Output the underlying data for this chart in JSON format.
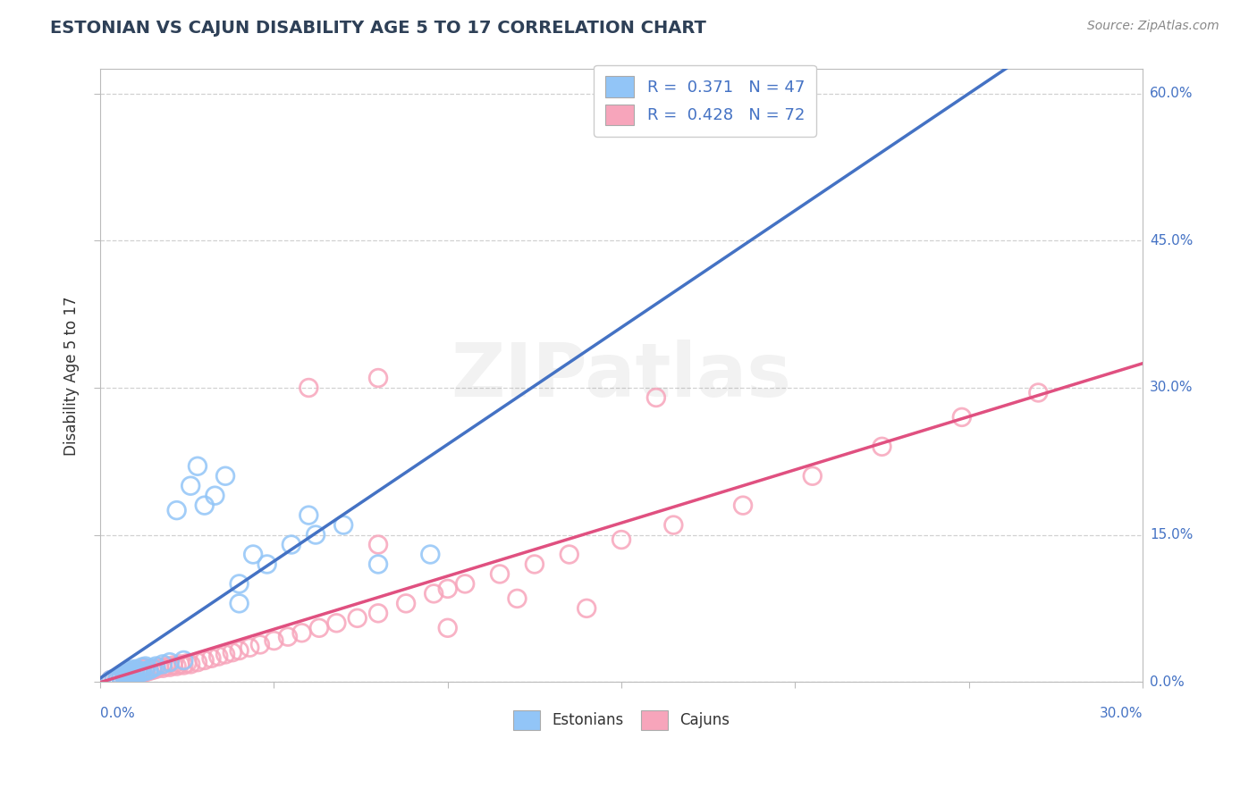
{
  "title": "ESTONIAN VS CAJUN DISABILITY AGE 5 TO 17 CORRELATION CHART",
  "source": "Source: ZipAtlas.com",
  "ylabel_label": "Disability Age 5 to 17",
  "xmin": 0.0,
  "xmax": 0.3,
  "ymin": 0.0,
  "ymax": 0.625,
  "yticks": [
    0.0,
    0.15,
    0.3,
    0.45,
    0.6
  ],
  "ytick_labels": [
    "0.0%",
    "15.0%",
    "30.0%",
    "45.0%",
    "60.0%"
  ],
  "xticks": [
    0.0,
    0.05,
    0.1,
    0.15,
    0.2,
    0.25,
    0.3
  ],
  "estonian_color": "#92C5F7",
  "cajun_color": "#F7A5BB",
  "estonian_R": 0.371,
  "estonian_N": 47,
  "cajun_R": 0.428,
  "cajun_N": 72,
  "title_color": "#2E4057",
  "axis_color": "#4472C4",
  "background_color": "#FFFFFF",
  "grid_color": "#CCCCCC",
  "legend_color": "#4472C4",
  "estonian_line_color": "#4472C4",
  "cajun_line_color": "#E05080",
  "dashed_line_color": "#BBBBBB",
  "estonian_scatter_x": [
    0.003,
    0.004,
    0.005,
    0.005,
    0.006,
    0.006,
    0.007,
    0.007,
    0.007,
    0.008,
    0.008,
    0.008,
    0.009,
    0.009,
    0.009,
    0.009,
    0.01,
    0.01,
    0.01,
    0.011,
    0.011,
    0.012,
    0.012,
    0.013,
    0.013,
    0.014,
    0.015,
    0.016,
    0.018,
    0.02,
    0.022,
    0.024,
    0.026,
    0.028,
    0.03,
    0.033,
    0.036,
    0.04,
    0.044,
    0.048,
    0.055,
    0.062,
    0.07,
    0.08,
    0.095,
    0.06,
    0.04
  ],
  "estonian_scatter_y": [
    0.002,
    0.003,
    0.003,
    0.004,
    0.004,
    0.005,
    0.004,
    0.006,
    0.007,
    0.005,
    0.007,
    0.009,
    0.006,
    0.008,
    0.01,
    0.012,
    0.007,
    0.009,
    0.013,
    0.009,
    0.012,
    0.01,
    0.015,
    0.011,
    0.016,
    0.012,
    0.014,
    0.016,
    0.018,
    0.02,
    0.175,
    0.022,
    0.2,
    0.22,
    0.18,
    0.19,
    0.21,
    0.1,
    0.13,
    0.12,
    0.14,
    0.15,
    0.16,
    0.12,
    0.13,
    0.17,
    0.08
  ],
  "cajun_scatter_x": [
    0.003,
    0.004,
    0.005,
    0.005,
    0.006,
    0.006,
    0.007,
    0.007,
    0.008,
    0.008,
    0.009,
    0.009,
    0.009,
    0.01,
    0.01,
    0.01,
    0.011,
    0.011,
    0.012,
    0.012,
    0.013,
    0.013,
    0.014,
    0.015,
    0.016,
    0.017,
    0.018,
    0.019,
    0.02,
    0.021,
    0.022,
    0.023,
    0.024,
    0.025,
    0.026,
    0.028,
    0.03,
    0.032,
    0.034,
    0.036,
    0.038,
    0.04,
    0.043,
    0.046,
    0.05,
    0.054,
    0.058,
    0.063,
    0.068,
    0.074,
    0.08,
    0.088,
    0.096,
    0.105,
    0.115,
    0.125,
    0.135,
    0.15,
    0.165,
    0.185,
    0.205,
    0.225,
    0.248,
    0.27,
    0.06,
    0.08,
    0.1,
    0.12,
    0.14,
    0.16,
    0.08,
    0.1
  ],
  "cajun_scatter_y": [
    0.002,
    0.003,
    0.003,
    0.004,
    0.004,
    0.005,
    0.005,
    0.007,
    0.006,
    0.008,
    0.006,
    0.008,
    0.01,
    0.007,
    0.01,
    0.012,
    0.008,
    0.011,
    0.009,
    0.013,
    0.01,
    0.014,
    0.011,
    0.012,
    0.013,
    0.015,
    0.014,
    0.016,
    0.015,
    0.017,
    0.016,
    0.018,
    0.017,
    0.019,
    0.018,
    0.02,
    0.022,
    0.024,
    0.026,
    0.028,
    0.03,
    0.032,
    0.035,
    0.038,
    0.042,
    0.046,
    0.05,
    0.055,
    0.06,
    0.065,
    0.07,
    0.08,
    0.09,
    0.1,
    0.11,
    0.12,
    0.13,
    0.145,
    0.16,
    0.18,
    0.21,
    0.24,
    0.27,
    0.295,
    0.3,
    0.31,
    0.095,
    0.085,
    0.075,
    0.29,
    0.14,
    0.055
  ]
}
